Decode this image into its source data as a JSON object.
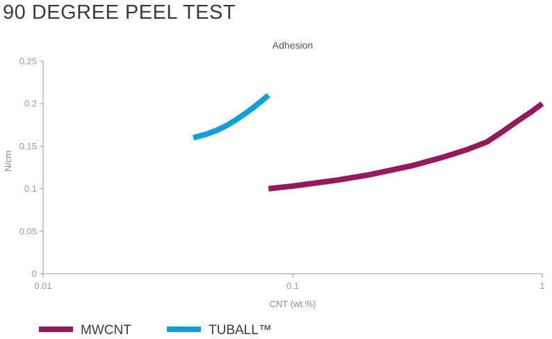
{
  "page": {
    "title": "90 DEGREE PEEL TEST"
  },
  "chart_data": {
    "type": "line",
    "title": "Adhesion",
    "xlabel": "CNT (wt.%)",
    "ylabel": "N/cm",
    "xscale": "log",
    "xlim": [
      0.01,
      1
    ],
    "ylim": [
      0,
      0.25
    ],
    "grid": false,
    "legend_position": "bottom-left",
    "x_ticks": [
      {
        "value": 0.01,
        "label": "0.01"
      },
      {
        "value": 0.1,
        "label": "0.1"
      },
      {
        "value": 1,
        "label": "1"
      }
    ],
    "y_ticks": [
      {
        "value": 0,
        "label": "0"
      },
      {
        "value": 0.05,
        "label": "0.05"
      },
      {
        "value": 0.1,
        "label": "0.1"
      },
      {
        "value": 0.15,
        "label": "0.15"
      },
      {
        "value": 0.2,
        "label": "0.2"
      },
      {
        "value": 0.25,
        "label": "0.25"
      }
    ],
    "series": [
      {
        "name": "MWCNT",
        "color": "#96195e",
        "x": [
          0.08,
          0.1,
          0.15,
          0.2,
          0.3,
          0.4,
          0.5,
          0.6,
          0.7,
          0.8,
          0.9,
          1.0
        ],
        "y": [
          0.1,
          0.103,
          0.11,
          0.116,
          0.127,
          0.137,
          0.146,
          0.155,
          0.168,
          0.18,
          0.19,
          0.2
        ]
      },
      {
        "name": "TUBALL™",
        "color": "#0aa1dc",
        "x": [
          0.04,
          0.045,
          0.05,
          0.055,
          0.06,
          0.065,
          0.07,
          0.075,
          0.08
        ],
        "y": [
          0.16,
          0.164,
          0.169,
          0.175,
          0.182,
          0.189,
          0.196,
          0.203,
          0.21
        ]
      }
    ]
  }
}
